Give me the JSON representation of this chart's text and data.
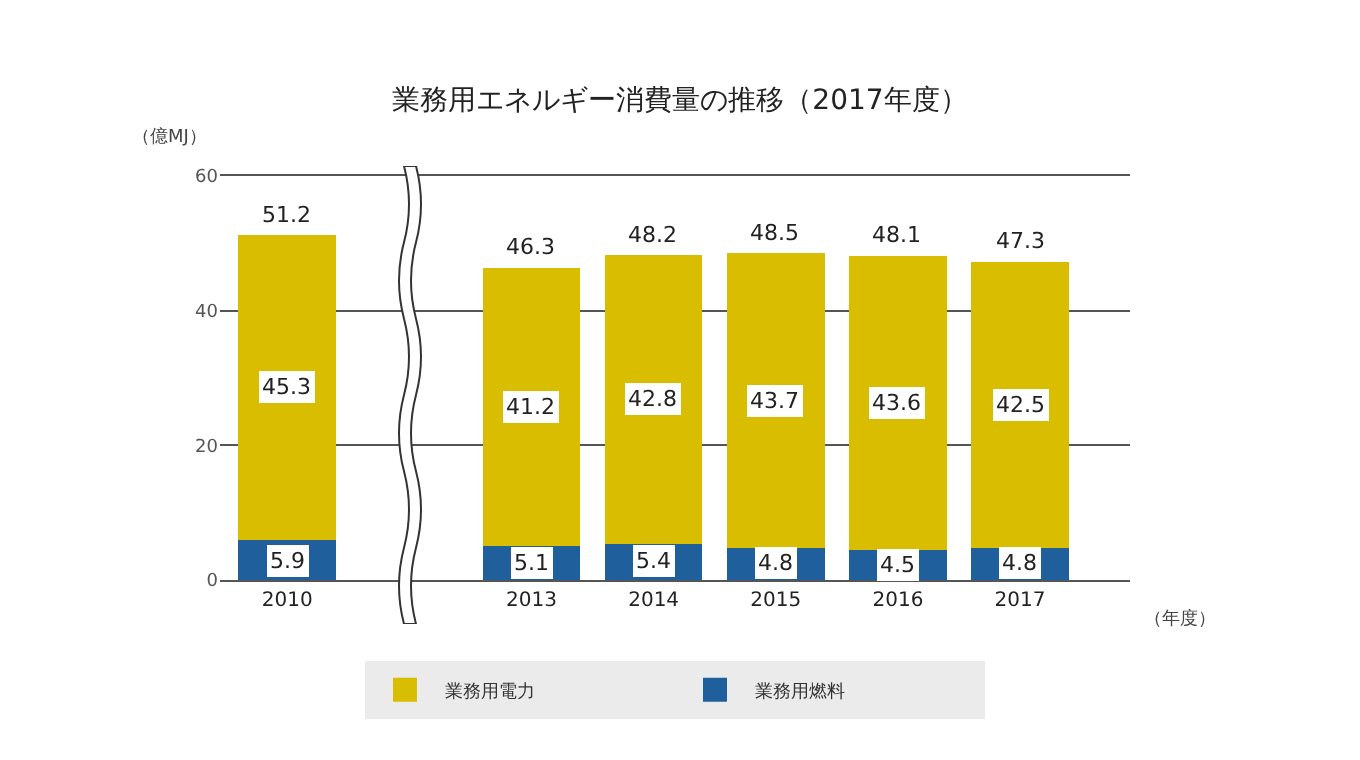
{
  "chart_data": {
    "type": "bar",
    "title": "業務用エネルギー消費量の推移（2017年度）",
    "ylabel": "（億MJ）",
    "xlabel": "（年度）",
    "categories": [
      "2010",
      null,
      "2013",
      "2014",
      "2015",
      "2016",
      "2017"
    ],
    "stacked": true,
    "series": [
      {
        "name": "業務用燃料",
        "color": "#1f5f9c",
        "values": [
          5.9,
          null,
          5.1,
          5.4,
          4.8,
          4.5,
          4.8
        ]
      },
      {
        "name": "業務用電力",
        "color": "#d9bd00",
        "values": [
          45.3,
          null,
          41.2,
          42.8,
          43.7,
          43.6,
          42.5
        ]
      }
    ],
    "totals": [
      "51.2",
      null,
      "46.3",
      "48.2",
      "48.5",
      "48.1",
      "47.3"
    ],
    "data_labels": true,
    "ylim": [
      0,
      60
    ],
    "yticks": [
      0,
      20,
      40,
      60
    ],
    "grid": "y",
    "legend": "bottom"
  }
}
